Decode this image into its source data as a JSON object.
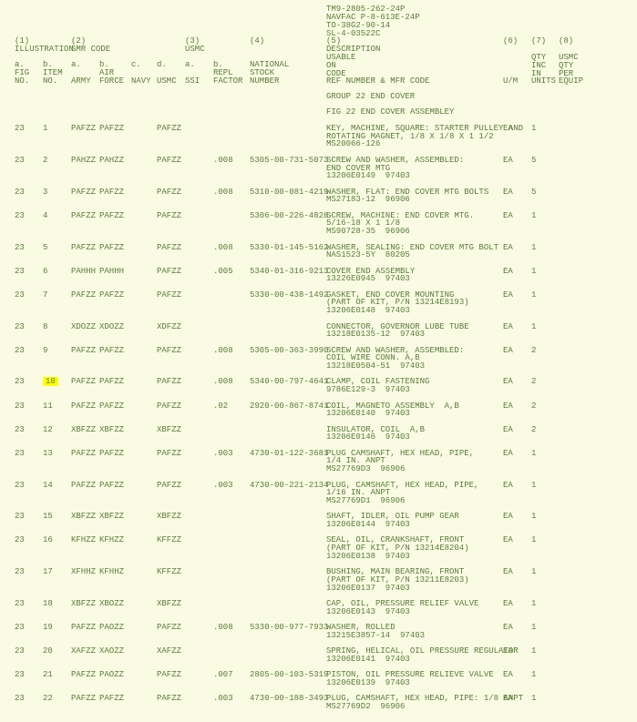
{
  "doc_refs": {
    "l1": "TM9-2805-262-24P",
    "l2": "NAVFAC P-8-613E-24P",
    "l3": "TO-38G2-90-14",
    "l4": "SL-4-03522C"
  },
  "header": {
    "c1": "(1)",
    "c2": "(2)",
    "c3": "(3)",
    "c4": "(4)",
    "c5": "(5)",
    "c6": "(6)",
    "c7": "(7)",
    "c8": "(8)",
    "illus": "ILLUSTRATION",
    "smr": "SMR CODE",
    "usmc_h": "USMC",
    "desc": "DESCRIPTION",
    "a1": "a.",
    "b1": "b.",
    "a2": "a.",
    "b2": "b.",
    "c_": "c.",
    "d_": "d.",
    "a3": "a.",
    "b3": "b.",
    "national": "NATIONAL",
    "usable": "USABLE",
    "qty1": "QTY",
    "usmc2": "USMC",
    "fig": "FIG",
    "item": "ITEM",
    "air": "AIR",
    "repl": "REPL",
    "stock": "STOCK",
    "on": "ON",
    "inc": "INC",
    "qty2": "QTY",
    "no1": "NO.",
    "no2": "NO.",
    "army": "ARMY",
    "force": "FORCE",
    "navy": "NAVY",
    "usmc3": "USMC",
    "ssi": "SSI",
    "factor": "FACTOR",
    "number": "NUMBER",
    "ref": "REF NUMBER & MFR CODE",
    "um": "U/M",
    "units": "UNITS",
    "in": "IN",
    "per": "PER",
    "equip": "EQUIP",
    "code": "CODE"
  },
  "group_title": "GROUP 22 END COVER",
  "fig_title": "FIG 22 END COVER ASSEMBLEY",
  "rows": [
    {
      "fig": "23",
      "item": "1",
      "army": "PAFZZ",
      "force": "PAFZZ",
      "usmc": "PAFZZ",
      "factor": "",
      "nsn": "",
      "desc": [
        "KEY, MACHINE, SQUARE: STARTER PULLEY AND",
        "ROTATING MAGNET, 1/8 X 1/8 X 1 1/2",
        "MS20066-126"
      ],
      "um": "EA",
      "qty": "1",
      "hl": false
    },
    {
      "fig": "23",
      "item": "2",
      "army": "PAHZZ",
      "force": "PAHZZ",
      "usmc": "PAFZZ",
      "factor": ".008",
      "nsn": "5305-00-731-5073",
      "desc": [
        "SCREW AND WASHER, ASSEMBLED:",
        "END COVER MTG",
        "13206E0149  97403"
      ],
      "um": "EA",
      "qty": "5",
      "hl": false
    },
    {
      "fig": "23",
      "item": "3",
      "army": "PAFZZ",
      "force": "PAFZZ",
      "usmc": "PAFZZ",
      "factor": ".008",
      "nsn": "5310-00-081-4219",
      "desc": [
        "WASHER, FLAT: END COVER MTG BOLTS",
        "MS27183-12  96906"
      ],
      "um": "EA",
      "qty": "5",
      "hl": false
    },
    {
      "fig": "23",
      "item": "4",
      "army": "PAFZZ",
      "force": "PAFZZ",
      "usmc": "PAFZZ",
      "factor": "",
      "nsn": "5306-00-226-4828",
      "desc": [
        "SCREW, MACHINE: END COVER MTG.",
        "5/16-18 X 1 1/8",
        "MS90728-35  96906"
      ],
      "um": "EA",
      "qty": "1",
      "hl": false
    },
    {
      "fig": "23",
      "item": "5",
      "army": "PAFZZ",
      "force": "PAFZZ",
      "usmc": "PAFZZ",
      "factor": ".008",
      "nsn": "5330-01-145-5162",
      "desc": [
        "WASHER, SEALING: END COVER MTG BOLT",
        "NAS1523-5Y  80205"
      ],
      "um": "EA",
      "qty": "1",
      "hl": false
    },
    {
      "fig": "23",
      "item": "6",
      "army": "PAHHH",
      "force": "PAHHH",
      "usmc": "PAFZZ",
      "factor": ".005",
      "nsn": "5340-01-316-9213",
      "desc": [
        "COVER END ASSEMBLY",
        "13226E0945  97403"
      ],
      "um": "EA",
      "qty": "1",
      "hl": false
    },
    {
      "fig": "23",
      "item": "7",
      "army": "PAFZZ",
      "force": "PAFZZ",
      "usmc": "PAFZZ",
      "factor": "",
      "nsn": "5330-00-438-1492",
      "desc": [
        "GASKET, END COVER MOUNTING",
        "(PART OF KIT, P/N 13214E8193)",
        "13206E0148  97403"
      ],
      "um": "EA",
      "qty": "1",
      "hl": false
    },
    {
      "fig": "23",
      "item": "8",
      "army": "XDOZZ",
      "force": "XDOZZ",
      "usmc": "XDFZZ",
      "factor": "",
      "nsn": "",
      "desc": [
        "CONNECTOR, GOVERNOR LUBE TUBE",
        "13218E0135-12  97403"
      ],
      "um": "EA",
      "qty": "1",
      "hl": false
    },
    {
      "fig": "23",
      "item": "9",
      "army": "PAFZZ",
      "force": "PAFZZ",
      "usmc": "PAFZZ",
      "factor": ".008",
      "nsn": "5305-00-363-3990",
      "desc": [
        "SCREW AND WASHER, ASSEMBLED:",
        "COIL WIRE CONN. A,B",
        "13218E0504-51  97403"
      ],
      "um": "EA",
      "qty": "2",
      "hl": false
    },
    {
      "fig": "23",
      "item": "10",
      "army": "PAFZZ",
      "force": "PAFZZ",
      "usmc": "PAFZZ",
      "factor": ".008",
      "nsn": "5340-00-797-4641",
      "desc": [
        "CLAMP, COIL FASTENING",
        "9786E129-3  97403"
      ],
      "um": "EA",
      "qty": "2",
      "hl": true
    },
    {
      "fig": "23",
      "item": "11",
      "army": "PAFZZ",
      "force": "PAFZZ",
      "usmc": "PAFZZ",
      "factor": ".02",
      "nsn": "2920-00-867-8741",
      "desc": [
        "COIL, MAGNETO ASSEMBLY  A,B",
        "13206E0140  97403"
      ],
      "um": "EA",
      "qty": "2",
      "hl": false
    },
    {
      "fig": "23",
      "item": "12",
      "army": "XBFZZ",
      "force": "XBFZZ",
      "usmc": "XBFZZ",
      "factor": "",
      "nsn": "",
      "desc": [
        "INSULATOR, COIL  A,B",
        "13206E0146  97403"
      ],
      "um": "EA",
      "qty": "2",
      "hl": false
    },
    {
      "fig": "23",
      "item": "13",
      "army": "PAFZZ",
      "force": "PAFZZ",
      "usmc": "PAFZZ",
      "factor": ".003",
      "nsn": "4730-01-122-3681",
      "desc": [
        "PLUG CAMSHAFT, HEX HEAD, PIPE,",
        "1/4 IN. ANPT",
        "MS27769D3  96906"
      ],
      "um": "EA",
      "qty": "1",
      "hl": false
    },
    {
      "fig": "23",
      "item": "14",
      "army": "PAFZZ",
      "force": "PAFZZ",
      "usmc": "PAFZZ",
      "factor": ".003",
      "nsn": "4730-00-221-2134",
      "desc": [
        "PLUG, CAMSHAFT, HEX HEAD, PIPE,",
        "1/16 IN. ANPT",
        "MS27769D1  96906"
      ],
      "um": "EA",
      "qty": "1",
      "hl": false
    },
    {
      "fig": "23",
      "item": "15",
      "army": "XBFZZ",
      "force": "XBFZZ",
      "usmc": "XBFZZ",
      "factor": "",
      "nsn": "",
      "desc": [
        "SHAFT, IDLER, OIL PUMP GEAR",
        "13206E0144  97403"
      ],
      "um": "EA",
      "qty": "1",
      "hl": false
    },
    {
      "fig": "23",
      "item": "16",
      "army": "KFHZZ",
      "force": "KFHZZ",
      "usmc": "KFFZZ",
      "factor": "",
      "nsn": "",
      "desc": [
        "SEAL, OIL, CRANKSHAFT, FRONT",
        "(PART OF KIT, P/N 13214E8204)",
        "13206E0138  97403"
      ],
      "um": "EA",
      "qty": "1",
      "hl": false
    },
    {
      "fig": "23",
      "item": "17",
      "army": "XFHHZ",
      "force": "KFHHZ",
      "usmc": "KFFZZ",
      "factor": "",
      "nsn": "",
      "desc": [
        "BUSHING, MAIN BEARING, FRONT",
        "(PART OF KIT, P/N 13211E8203)",
        "13206E0137  97403"
      ],
      "um": "EA",
      "qty": "1",
      "hl": false
    },
    {
      "fig": "23",
      "item": "18",
      "army": "XBFZZ",
      "force": "XBOZZ",
      "usmc": "XBFZZ",
      "factor": "",
      "nsn": "",
      "desc": [
        "CAP, OIL, PRESSURE RELIEF VALVE",
        "13206E0143  97403"
      ],
      "um": "EA",
      "qty": "1",
      "hl": false
    },
    {
      "fig": "23",
      "item": "19",
      "army": "PAFZZ",
      "force": "PAOZZ",
      "usmc": "PAFZZ",
      "factor": ".008",
      "nsn": "5330-00-977-7933",
      "desc": [
        "WASHER, ROLLED",
        "13215E3857-14  97403"
      ],
      "um": "EA",
      "qty": "1",
      "hl": false
    },
    {
      "fig": "23",
      "item": "20",
      "army": "XAFZZ",
      "force": "XAOZZ",
      "usmc": "XAFZZ",
      "factor": "",
      "nsn": "",
      "desc": [
        "SPRING, HELICAL, OIL PRESSURE REGULATOR",
        "13206E0141  97403"
      ],
      "um": "EA",
      "qty": "1",
      "hl": false
    },
    {
      "fig": "23",
      "item": "21",
      "army": "PAFZZ",
      "force": "PAOZZ",
      "usmc": "PAFZZ",
      "factor": ".007",
      "nsn": "2805-00-103-5319",
      "desc": [
        "PISTON, OIL PRESSURE RELIEVE VALVE",
        "13206E0139  97403"
      ],
      "um": "EA",
      "qty": "1",
      "hl": false
    },
    {
      "fig": "23",
      "item": "22",
      "army": "PAFZZ",
      "force": "PAFZZ",
      "usmc": "PAFZZ",
      "factor": ".003",
      "nsn": "4730-00-188-3493",
      "desc": [
        "PLUG, CAMSHAFT, HEX HEAD, PIPE: 1/8 ANPT",
        "MS27769D2  96906"
      ],
      "um": "EA",
      "qty": "1",
      "hl": false
    }
  ],
  "cols": {
    "fig": 16,
    "item": 47,
    "army": 78,
    "force": 109,
    "navy": 144,
    "usmc": 172,
    "ssi": 203,
    "factor": 234,
    "nsn": 274,
    "desc": 358,
    "um": 552,
    "units": 583,
    "equip": 613
  }
}
